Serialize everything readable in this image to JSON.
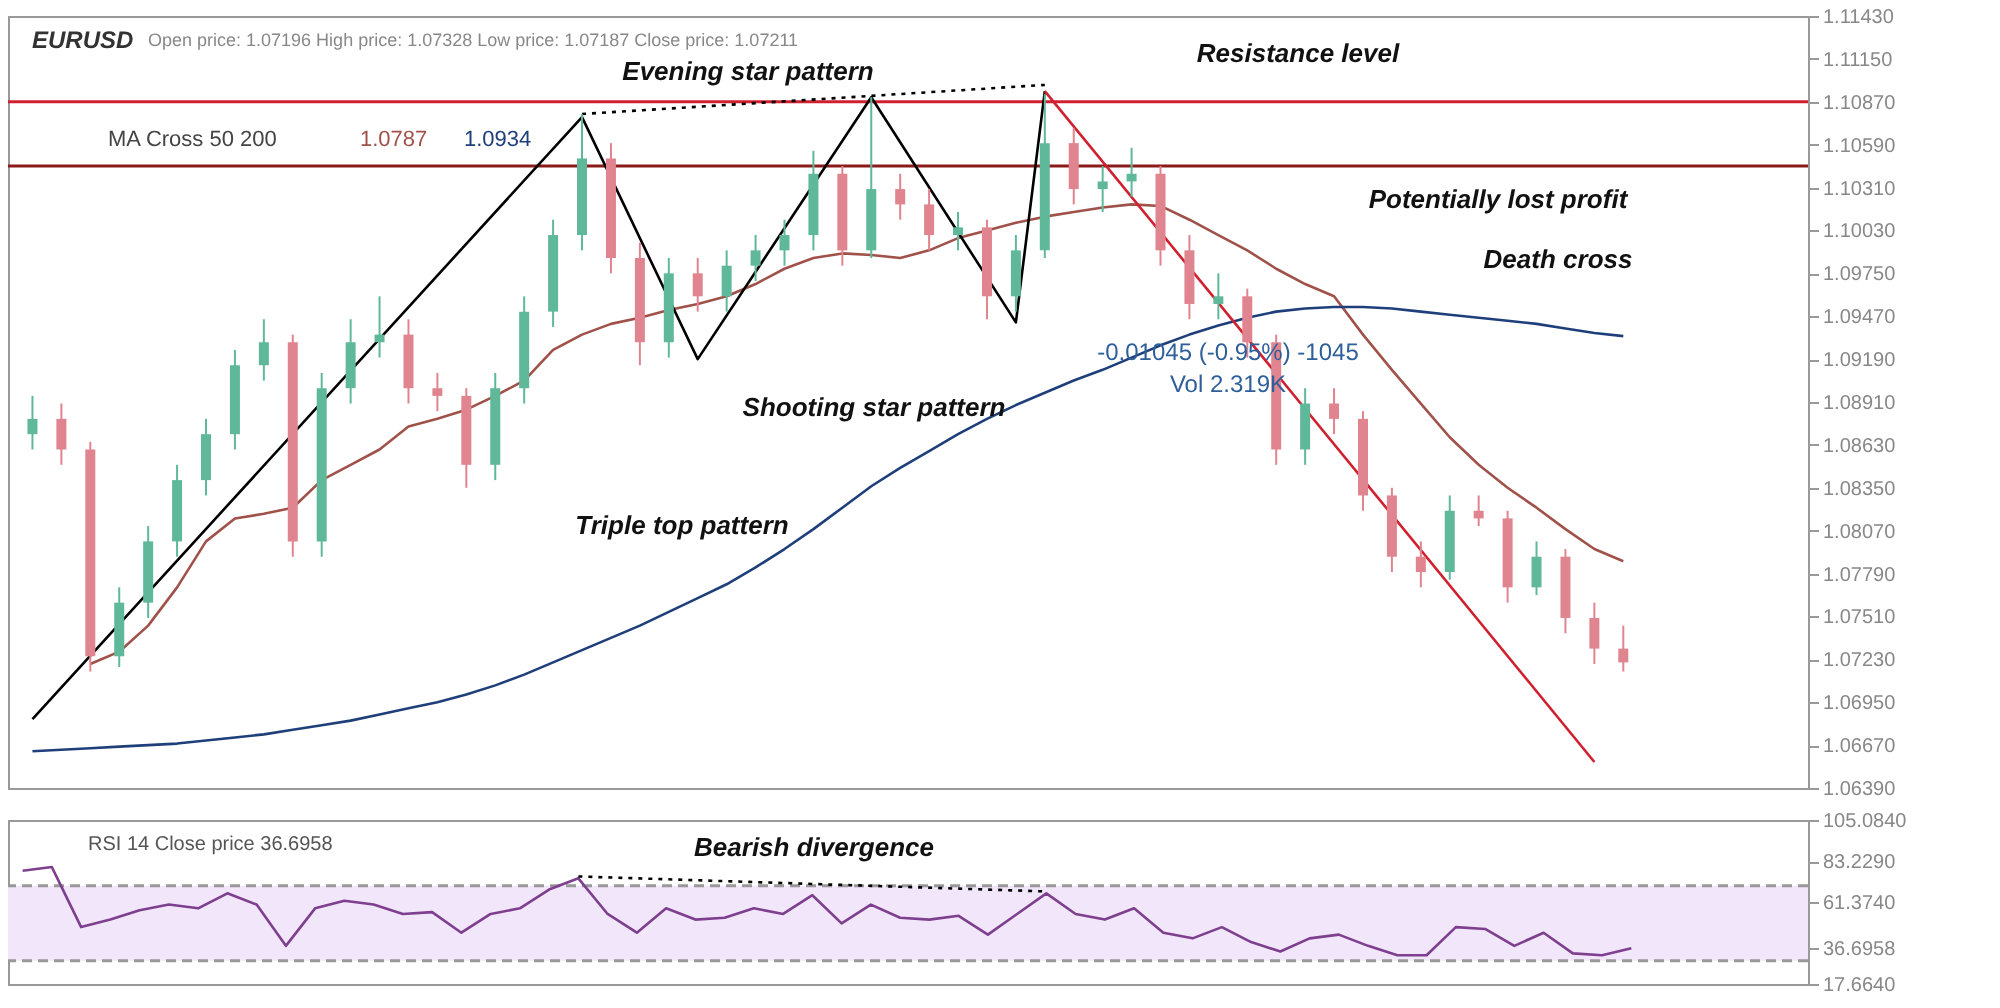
{
  "chart_data": [
    {
      "type": "candlestick",
      "title": "EURUSD",
      "subtitle": "Open price: 1.07196   High price: 1.07328   Low price: 1.07187   Close price: 1.07211",
      "categories": [
        null,
        null,
        null,
        null,
        null,
        null,
        null,
        null,
        null,
        null,
        null,
        null,
        null,
        null,
        null,
        null,
        null,
        null,
        null,
        null,
        null,
        null,
        null,
        null,
        null,
        null,
        null,
        null,
        null,
        null,
        null,
        null,
        null,
        null,
        null,
        null,
        null,
        null,
        null,
        null,
        null,
        null,
        null,
        null,
        null,
        null,
        null,
        null,
        null,
        null,
        null,
        null,
        null,
        null,
        null,
        null
      ],
      "ohlc": [
        [
          1.087,
          1.0895,
          1.086,
          1.088
        ],
        [
          1.088,
          1.089,
          1.085,
          1.086
        ],
        [
          1.086,
          1.0865,
          1.0715,
          1.0725
        ],
        [
          1.0725,
          1.077,
          1.0718,
          1.076
        ],
        [
          1.076,
          1.081,
          1.075,
          1.08
        ],
        [
          1.08,
          1.085,
          1.079,
          1.084
        ],
        [
          1.084,
          1.088,
          1.083,
          1.087
        ],
        [
          1.087,
          1.0925,
          1.086,
          1.0915
        ],
        [
          1.0915,
          1.0945,
          1.0905,
          1.093
        ],
        [
          1.093,
          1.0935,
          1.079,
          1.08
        ],
        [
          1.08,
          1.091,
          1.079,
          1.09
        ],
        [
          1.09,
          1.0945,
          1.089,
          1.093
        ],
        [
          1.093,
          1.096,
          1.092,
          1.0935
        ],
        [
          1.0935,
          1.0945,
          1.089,
          1.09
        ],
        [
          1.09,
          1.091,
          1.0885,
          1.0895
        ],
        [
          1.0895,
          1.09,
          1.0835,
          1.085
        ],
        [
          1.085,
          1.091,
          1.084,
          1.09
        ],
        [
          1.09,
          1.096,
          1.089,
          1.095
        ],
        [
          1.095,
          1.101,
          1.094,
          1.1
        ],
        [
          1.1,
          1.1079,
          1.099,
          1.105
        ],
        [
          1.105,
          1.106,
          1.0975,
          1.0985
        ],
        [
          1.0985,
          1.0995,
          1.0915,
          1.093
        ],
        [
          1.093,
          1.0985,
          1.092,
          1.0975
        ],
        [
          1.0975,
          1.0985,
          1.095,
          1.096
        ],
        [
          1.096,
          1.099,
          1.095,
          1.098
        ],
        [
          1.098,
          1.1,
          1.097,
          1.099
        ],
        [
          1.099,
          1.101,
          1.098,
          1.1
        ],
        [
          1.1,
          1.1055,
          1.099,
          1.104
        ],
        [
          1.104,
          1.1045,
          1.098,
          1.099
        ],
        [
          1.099,
          1.109,
          1.0985,
          1.103
        ],
        [
          1.103,
          1.104,
          1.101,
          1.102
        ],
        [
          1.102,
          1.103,
          1.099,
          1.1
        ],
        [
          1.1,
          1.1015,
          1.099,
          1.1005
        ],
        [
          1.1005,
          1.101,
          1.0945,
          1.096
        ],
        [
          1.096,
          1.1,
          1.095,
          1.099
        ],
        [
          1.099,
          1.1092,
          1.0985,
          1.106
        ],
        [
          1.106,
          1.107,
          1.102,
          1.103
        ],
        [
          1.103,
          1.1045,
          1.1015,
          1.1035
        ],
        [
          1.1035,
          1.1057,
          1.1025,
          1.104
        ],
        [
          1.104,
          1.1045,
          1.098,
          1.099
        ],
        [
          1.099,
          1.1,
          1.0945,
          1.0955
        ],
        [
          1.0955,
          1.0975,
          1.0945,
          1.096
        ],
        [
          1.096,
          1.0965,
          1.092,
          1.093
        ],
        [
          1.093,
          1.0935,
          1.085,
          1.086
        ],
        [
          1.086,
          1.09,
          1.085,
          1.089
        ],
        [
          1.089,
          1.09,
          1.087,
          1.088
        ],
        [
          1.088,
          1.0885,
          1.082,
          1.083
        ],
        [
          1.083,
          1.0835,
          1.078,
          1.079
        ],
        [
          1.079,
          1.08,
          1.077,
          1.078
        ],
        [
          1.078,
          1.083,
          1.0775,
          1.082
        ],
        [
          1.082,
          1.083,
          1.081,
          1.0815
        ],
        [
          1.0815,
          1.082,
          1.076,
          1.077
        ],
        [
          1.077,
          1.08,
          1.0765,
          1.079
        ],
        [
          1.079,
          1.0795,
          1.074,
          1.075
        ],
        [
          1.075,
          1.076,
          1.072,
          1.073
        ],
        [
          1.073,
          1.0745,
          1.0715,
          1.0721
        ]
      ],
      "colors": [
        "#5fb89a",
        "#e0848f",
        "#e0848f",
        "#5fb89a",
        "#5fb89a",
        "#5fb89a",
        "#5fb89a",
        "#5fb89a",
        "#5fb89a",
        "#e0848f",
        "#5fb89a",
        "#5fb89a",
        "#5fb89a",
        "#e0848f",
        "#e0848f",
        "#e0848f",
        "#5fb89a",
        "#5fb89a",
        "#5fb89a",
        "#5fb89a",
        "#e0848f",
        "#e0848f",
        "#5fb89a",
        "#e0848f",
        "#5fb89a",
        "#5fb89a",
        "#5fb89a",
        "#5fb89a",
        "#e0848f",
        "#5fb89a",
        "#e0848f",
        "#e0848f",
        "#5fb89a",
        "#e0848f",
        "#5fb89a",
        "#5fb89a",
        "#e0848f",
        "#5fb89a",
        "#5fb89a",
        "#e0848f",
        "#e0848f",
        "#5fb89a",
        "#e0848f",
        "#e0848f",
        "#5fb89a",
        "#e0848f",
        "#e0848f",
        "#e0848f",
        "#e0848f",
        "#5fb89a",
        "#e0848f",
        "#e0848f",
        "#5fb89a",
        "#e0848f",
        "#e0848f",
        "#e0848f"
      ],
      "series": [
        {
          "name": "1.0787",
          "type": "line",
          "color": "#a0524a",
          "values": [
            null,
            null,
            1.072,
            1.0728,
            1.0745,
            1.077,
            1.08,
            1.0815,
            1.0818,
            1.0822,
            1.084,
            1.085,
            1.086,
            1.0875,
            1.088,
            1.0886,
            1.0895,
            1.0905,
            1.0925,
            1.0935,
            1.0942,
            1.0946,
            1.0951,
            1.0955,
            1.096,
            1.0968,
            1.0978,
            1.0985,
            1.0988,
            1.0987,
            1.0985,
            1.099,
            1.0998,
            1.1003,
            1.1008,
            1.1012,
            1.1015,
            1.1018,
            1.102,
            1.1019,
            1.101,
            1.1,
            1.099,
            1.0978,
            1.0968,
            1.096,
            1.0935,
            1.0912,
            1.089,
            1.0868,
            1.085,
            1.0835,
            1.0822,
            1.0808,
            1.0795,
            1.0787
          ]
        },
        {
          "name": "1.0934",
          "type": "line",
          "color": "#1f3f7a",
          "values": [
            1.0663,
            1.0664,
            1.0665,
            1.0666,
            1.0667,
            1.0668,
            1.067,
            1.0672,
            1.0674,
            1.0677,
            1.068,
            1.0683,
            1.0687,
            1.0691,
            1.0695,
            1.07,
            1.0706,
            1.0713,
            1.0721,
            1.0729,
            1.0737,
            1.0745,
            1.0754,
            1.0763,
            1.0772,
            1.0783,
            1.0795,
            1.0808,
            1.0822,
            1.0836,
            1.0848,
            1.0859,
            1.087,
            1.088,
            1.0889,
            1.0897,
            1.0905,
            1.0912,
            1.092,
            1.0928,
            1.0935,
            1.0941,
            1.0946,
            1.095,
            1.0952,
            1.0953,
            1.0953,
            1.0952,
            1.095,
            1.0948,
            1.0946,
            1.0944,
            1.0942,
            1.0939,
            1.0936,
            1.0934
          ]
        },
        {
          "type": "line",
          "color": "#000000",
          "values": [
            1.0684,
            null,
            null,
            null,
            null,
            null,
            null,
            null,
            null,
            null,
            null,
            null,
            null,
            null,
            null,
            null,
            null,
            null,
            null,
            1.1077,
            null,
            null,
            null,
            1.0919,
            null,
            null,
            null,
            null,
            null,
            1.109,
            null,
            null,
            null,
            null,
            1.0943,
            1.1094,
            null,
            null,
            null,
            null,
            null,
            null,
            null,
            null,
            null,
            null,
            null,
            null,
            null,
            null,
            null,
            null,
            null,
            null,
            null,
            null
          ]
        },
        {
          "type": "line",
          "color": "#d0202f",
          "values": [
            null,
            null,
            null,
            null,
            null,
            null,
            null,
            null,
            null,
            null,
            null,
            null,
            null,
            null,
            null,
            null,
            null,
            null,
            null,
            null,
            null,
            null,
            null,
            null,
            null,
            null,
            null,
            null,
            null,
            null,
            null,
            null,
            null,
            null,
            null,
            1.1094,
            null,
            null,
            null,
            null,
            null,
            null,
            null,
            null,
            null,
            null,
            null,
            null,
            null,
            null,
            null,
            null,
            null,
            null,
            1.0656,
            null
          ]
        },
        {
          "type": "line",
          "color": "#000000",
          "line_style": "dotted",
          "values": [
            null,
            null,
            null,
            null,
            null,
            null,
            null,
            null,
            null,
            null,
            null,
            null,
            null,
            null,
            null,
            null,
            null,
            null,
            null,
            1.1079,
            null,
            null,
            null,
            null,
            null,
            null,
            null,
            null,
            null,
            null,
            null,
            null,
            null,
            null,
            null,
            1.1098,
            null,
            null,
            null,
            null,
            null,
            null,
            null,
            null,
            null,
            null,
            null,
            null,
            null,
            null,
            null,
            null,
            null,
            null,
            null,
            null
          ]
        }
      ],
      "legend_title": "MA Cross 50 200",
      "legend": "top left",
      "ref_lines": [
        {
          "axis": "y",
          "value": 1.1087,
          "color": "#d0202f"
        },
        {
          "axis": "y",
          "value": 1.1045,
          "color": "#8b1a1a"
        }
      ],
      "ylim": [
        1.0639,
        1.1143
      ],
      "yticks": [
        {
          "value": 1.1143,
          "label": "1.11430"
        },
        {
          "value": 1.1115,
          "label": "1.11150"
        },
        {
          "value": 1.1087,
          "label": "1.10870"
        },
        {
          "value": 1.1059,
          "label": "1.10590"
        },
        {
          "value": 1.1031,
          "label": "1.10310"
        },
        {
          "value": 1.1003,
          "label": "1.10030"
        },
        {
          "value": 1.0975,
          "label": "1.09750"
        },
        {
          "value": 1.0947,
          "label": "1.09470"
        },
        {
          "value": 1.0919,
          "label": "1.09190"
        },
        {
          "value": 1.0891,
          "label": "1.08910"
        },
        {
          "value": 1.0863,
          "label": "1.08630"
        },
        {
          "value": 1.0835,
          "label": "1.08350"
        },
        {
          "value": 1.0807,
          "label": "1.08070"
        },
        {
          "value": 1.0779,
          "label": "1.07790"
        },
        {
          "value": 1.0751,
          "label": "1.07510"
        },
        {
          "value": 1.0723,
          "label": "1.07230"
        },
        {
          "value": 1.0695,
          "label": "1.06950"
        },
        {
          "value": 1.0667,
          "label": "1.06670"
        },
        {
          "value": 1.0639,
          "label": "1.06390"
        }
      ],
      "annotations": [
        "Evening star pattern",
        "Resistance level",
        "Potentially lost profit",
        "Death cross",
        "Shooting star pattern",
        "Triple top pattern",
        "-0.01045 (-0.95%) -1045",
        "Vol 2.319K"
      ],
      "grid": false,
      "tick_labels": "y"
    },
    {
      "type": "line",
      "title": "RSI 14 Close price 36.6958",
      "categories": [
        null,
        null,
        null,
        null,
        null,
        null,
        null,
        null,
        null,
        null,
        null,
        null,
        null,
        null,
        null,
        null,
        null,
        null,
        null,
        null,
        null,
        null,
        null,
        null,
        null,
        null,
        null,
        null,
        null,
        null,
        null,
        null,
        null,
        null,
        null,
        null,
        null,
        null,
        null,
        null,
        null,
        null,
        null,
        null,
        null,
        null,
        null,
        null,
        null,
        null,
        null,
        null,
        null,
        null,
        null,
        null
      ],
      "series": [
        {
          "color": "#7e3f8f",
          "values": [
            78,
            80,
            48,
            52,
            57,
            60,
            58,
            66,
            60,
            38,
            58,
            62,
            60,
            55,
            56,
            45,
            55,
            58,
            68,
            74,
            55,
            45,
            58,
            52,
            53,
            58,
            55,
            65,
            50,
            60,
            53,
            52,
            54,
            44,
            55,
            66,
            55,
            52,
            58,
            45,
            42,
            48,
            40,
            35,
            42,
            44,
            38,
            33,
            33,
            48,
            47,
            38,
            45,
            34,
            33,
            36.6958
          ]
        },
        {
          "color": "#000000",
          "line_style": "dotted",
          "values": [
            null,
            null,
            null,
            null,
            null,
            null,
            null,
            null,
            null,
            null,
            null,
            null,
            null,
            null,
            null,
            null,
            null,
            null,
            null,
            75,
            null,
            null,
            null,
            null,
            null,
            null,
            null,
            null,
            null,
            null,
            null,
            null,
            null,
            null,
            null,
            67,
            null,
            null,
            null,
            null,
            null,
            null,
            null,
            null,
            null,
            null,
            null,
            null,
            null,
            null,
            null,
            null,
            null,
            null,
            null,
            null
          ]
        }
      ],
      "bands": [
        {
          "axis": "y",
          "from": 30,
          "to": 70,
          "color": "#f1e6fa"
        }
      ],
      "ref_lines": [
        {
          "axis": "y",
          "value": 70,
          "color": "#999999",
          "line_style": "dashed"
        },
        {
          "axis": "y",
          "value": 30,
          "color": "#999999",
          "line_style": "dashed"
        }
      ],
      "ylim": [
        17.664,
        105.084
      ],
      "yticks": [
        {
          "value": 105.084,
          "label": "105.0840"
        },
        {
          "value": 83.229,
          "label": "83.2290"
        },
        {
          "value": 61.374,
          "label": "61.3740"
        },
        {
          "value": 36.6958,
          "label": "36.6958"
        },
        {
          "value": 17.664,
          "label": "17.6640"
        }
      ],
      "annotations": [
        "Bearish divergence"
      ],
      "grid": false,
      "tick_labels": "y"
    }
  ]
}
